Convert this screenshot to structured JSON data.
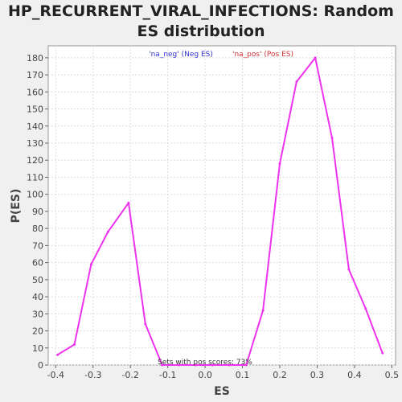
{
  "chart_data": {
    "type": "line",
    "title_line1": "HP_RECURRENT_VIRAL_INFECTIONS: Random",
    "title_line2": "ES distribution",
    "xlabel": "ES",
    "ylabel": "P(ES)",
    "xlim": [
      -0.42,
      0.51
    ],
    "ylim": [
      0,
      187
    ],
    "x_ticks": [
      -0.4,
      -0.3,
      -0.2,
      -0.1,
      0.0,
      0.1,
      0.2,
      0.3,
      0.4,
      0.5
    ],
    "x_tick_labels": [
      "-0.4",
      "-0.3",
      "-0.2",
      "-0.1",
      "0.0",
      "0.1",
      "0.2",
      "0.3",
      "0.4",
      "0.5"
    ],
    "y_ticks": [
      0,
      10,
      20,
      30,
      40,
      50,
      60,
      70,
      80,
      90,
      100,
      110,
      120,
      130,
      140,
      150,
      160,
      170,
      180
    ],
    "y_tick_labels": [
      "0",
      "10",
      "20",
      "30",
      "40",
      "50",
      "60",
      "70",
      "80",
      "90",
      "100",
      "110",
      "120",
      "130",
      "140",
      "150",
      "160",
      "170",
      "180"
    ],
    "grid": true,
    "legend": [
      {
        "label": "'na_neg' (Neg ES)",
        "color": "#3333cc"
      },
      {
        "label": "'na_pos' (Pos ES)",
        "color": "#cc3333"
      }
    ],
    "annotation": "Sets with pos scores: 73%",
    "series": [
      {
        "color": "#ee33ee",
        "x": [
          -0.395,
          -0.35,
          -0.305,
          -0.26,
          -0.205,
          -0.16,
          -0.115,
          -0.07,
          -0.025,
          0.02,
          0.065,
          0.11,
          0.155,
          0.2,
          0.245,
          0.295,
          0.34,
          0.385,
          0.43,
          0.475
        ],
        "y": [
          6,
          12,
          59,
          78,
          95,
          24,
          0,
          0,
          0,
          0,
          0,
          0,
          32,
          118,
          166,
          180,
          133,
          56,
          33,
          7
        ]
      }
    ]
  }
}
